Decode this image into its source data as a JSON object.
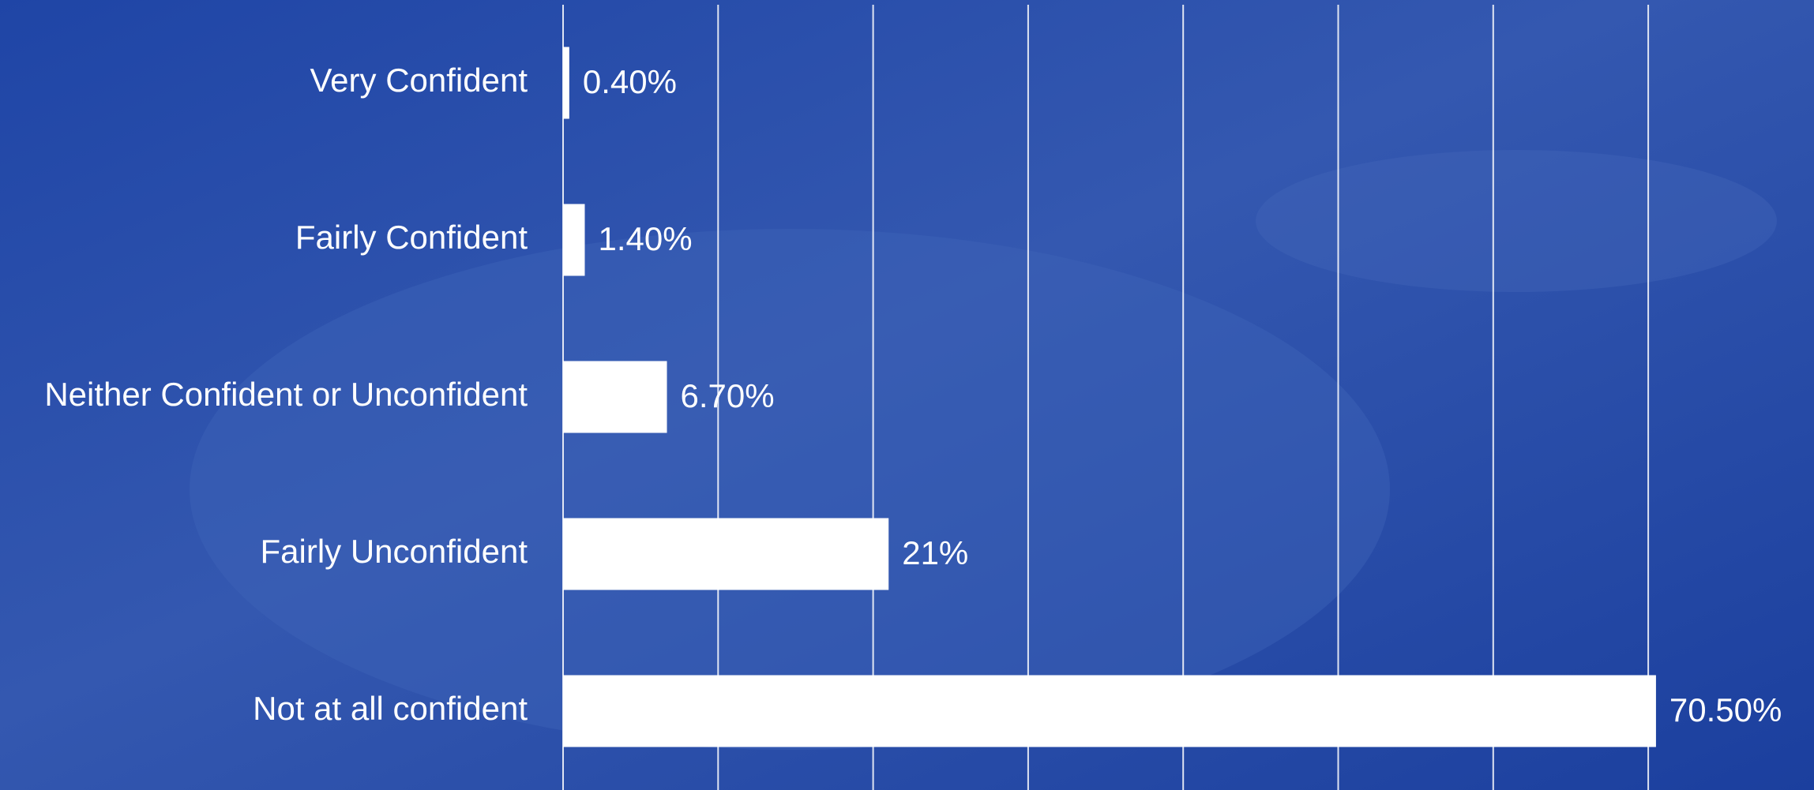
{
  "chart_data": {
    "type": "bar",
    "orientation": "horizontal",
    "categories": [
      "Very Confident",
      "Fairly Confident",
      "Neither Confident or Unconfident",
      "Fairly Unconfident",
      "Not at all confident"
    ],
    "values": [
      0.4,
      1.4,
      6.7,
      21,
      70.5
    ],
    "value_labels": [
      "0.40%",
      "1.40%",
      "6.70%",
      "21%",
      "70.50%"
    ],
    "color": "#ffffff",
    "xlim": [
      0,
      80
    ],
    "xticks": [
      0,
      10,
      20,
      30,
      40,
      50,
      60,
      70
    ],
    "grid": true
  }
}
